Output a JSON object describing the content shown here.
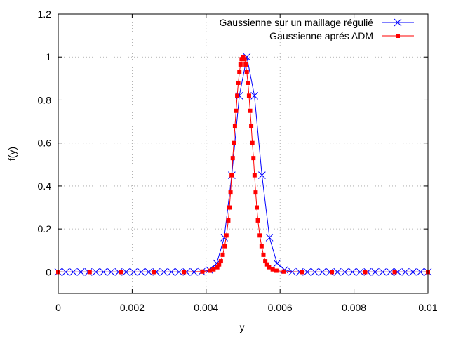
{
  "chart_data": {
    "type": "line",
    "xlabel": "y",
    "ylabel": "f(y)",
    "xlim": [
      0,
      0.01
    ],
    "ylim": [
      -0.1,
      1.2
    ],
    "x_ticks": [
      0,
      0.002,
      0.004,
      0.006,
      0.008,
      0.01
    ],
    "x_tick_labels": [
      "0",
      "0.002",
      "0.004",
      "0.006",
      "0.008",
      "0.01"
    ],
    "y_ticks": [
      0,
      0.2,
      0.4,
      0.6,
      0.8,
      1,
      1.2
    ],
    "y_tick_labels": [
      "0",
      "0.2",
      "0.4",
      "0.6",
      "0.8",
      "1",
      "1.2"
    ],
    "grid": true,
    "legend_position": "top-right",
    "series": [
      {
        "name": "Gaussienne sur un maillage régulié",
        "color": "#0000ff",
        "marker": "x",
        "x": [
          0,
          0.000204,
          0.000408,
          0.000612,
          0.000816,
          0.00102,
          0.001224,
          0.001429,
          0.001633,
          0.001837,
          0.002041,
          0.002245,
          0.002449,
          0.002653,
          0.002857,
          0.003061,
          0.003265,
          0.003469,
          0.003673,
          0.003878,
          0.004082,
          0.004286,
          0.00449,
          0.004694,
          0.004898,
          0.005102,
          0.005306,
          0.00551,
          0.005714,
          0.005918,
          0.006122,
          0.006327,
          0.006531,
          0.006735,
          0.006939,
          0.007143,
          0.007347,
          0.007551,
          0.007755,
          0.007959,
          0.008163,
          0.008367,
          0.008571,
          0.008776,
          0.00898,
          0.009184,
          0.009388,
          0.009592,
          0.009796,
          0.01
        ],
        "y": [
          0,
          0,
          0,
          0,
          0,
          0,
          0,
          0,
          0,
          0,
          0,
          0,
          0,
          0,
          0,
          0,
          0,
          0,
          0,
          0.001,
          0.01,
          0.04,
          0.16,
          0.45,
          0.82,
          1.0,
          0.82,
          0.45,
          0.16,
          0.04,
          0.01,
          0.001,
          0,
          0,
          0,
          0,
          0,
          0,
          0,
          0,
          0,
          0,
          0,
          0,
          0,
          0,
          0,
          0,
          0,
          0
        ]
      },
      {
        "name": "Gaussienne aprés ADM",
        "color": "#ff0000",
        "marker": "square",
        "x": [
          0,
          0.00085,
          0.0017,
          0.0026,
          0.0034,
          0.0039,
          0.0041,
          0.0042,
          0.0043,
          0.00435,
          0.0044,
          0.00445,
          0.0045,
          0.00455,
          0.0046,
          0.00463,
          0.00466,
          0.00469,
          0.00472,
          0.00475,
          0.00478,
          0.00481,
          0.00484,
          0.00487,
          0.0049,
          0.00493,
          0.00496,
          0.005,
          0.00504,
          0.00507,
          0.0051,
          0.00513,
          0.00516,
          0.00519,
          0.00522,
          0.00525,
          0.00528,
          0.00531,
          0.00534,
          0.00537,
          0.0054,
          0.00545,
          0.0055,
          0.00555,
          0.0056,
          0.00565,
          0.0057,
          0.0058,
          0.0059,
          0.0061,
          0.0066,
          0.0074,
          0.0083,
          0.0091,
          0.01
        ],
        "y": [
          0,
          0,
          0,
          0,
          0,
          0.002,
          0.006,
          0.012,
          0.022,
          0.035,
          0.05,
          0.08,
          0.12,
          0.17,
          0.24,
          0.3,
          0.37,
          0.45,
          0.53,
          0.6,
          0.68,
          0.75,
          0.82,
          0.88,
          0.93,
          0.965,
          0.99,
          1.0,
          0.99,
          0.965,
          0.93,
          0.88,
          0.82,
          0.75,
          0.68,
          0.6,
          0.53,
          0.45,
          0.37,
          0.3,
          0.24,
          0.17,
          0.12,
          0.08,
          0.05,
          0.035,
          0.022,
          0.012,
          0.006,
          0.002,
          0,
          0,
          0,
          0,
          0
        ]
      }
    ]
  }
}
